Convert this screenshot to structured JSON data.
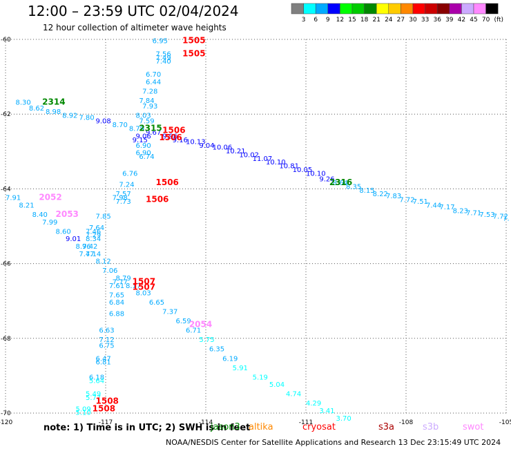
{
  "title": "12:00 – 23:59 UTC 02/04/2024",
  "subtitle": "12 hour collection of altimeter wave heights",
  "color_scale": {
    "unit": "(ft)",
    "bins": [
      {
        "label": "3",
        "color": "#808080"
      },
      {
        "label": "6",
        "color": "#00ffff"
      },
      {
        "label": "9",
        "color": "#00aaff"
      },
      {
        "label": "12",
        "color": "#0000ff"
      },
      {
        "label": "15",
        "color": "#00ff00"
      },
      {
        "label": "18",
        "color": "#00cc00"
      },
      {
        "label": "21",
        "color": "#008800"
      },
      {
        "label": "24",
        "color": "#ffff00"
      },
      {
        "label": "27",
        "color": "#ffcc00"
      },
      {
        "label": "30",
        "color": "#ff8800"
      },
      {
        "label": "33",
        "color": "#ff0000"
      },
      {
        "label": "36",
        "color": "#cc0000"
      },
      {
        "label": "39",
        "color": "#880000"
      },
      {
        "label": "42",
        "color": "#aa00aa"
      },
      {
        "label": "45",
        "color": "#ccaaff"
      },
      {
        "label": "70",
        "color": "#ff88ff"
      },
      {
        "label": "",
        "color": "#000000"
      }
    ]
  },
  "note": "note: 1) Time is in UTC; 2) SWH is in feet",
  "satellites": [
    {
      "name": "jason3",
      "color": "#008800"
    },
    {
      "name": "altika",
      "color": "#ff8800"
    },
    {
      "name": "cryosat",
      "color": "#ff0000"
    },
    {
      "name": "s3a",
      "color": "#aa0000"
    },
    {
      "name": "s3b",
      "color": "#ccaaff"
    },
    {
      "name": "swot",
      "color": "#ff88ff"
    }
  ],
  "footer": "NOAA/NESDIS Center for Satellite Applications and Research   13 Dec 23:15:49 UTC 2024",
  "chart_data": {
    "type": "scatter",
    "title": "12:00 – 23:59 UTC 02/04/2024",
    "x_ticks": [
      "-120",
      "-117",
      "-114",
      "-111",
      "-108",
      "-105"
    ],
    "y_ticks": [
      "-60",
      "-62",
      "-64",
      "-66",
      "-68",
      "-70"
    ],
    "xlim": [
      -120,
      -105
    ],
    "ylim": [
      -70,
      -60
    ],
    "grid": true,
    "passes": [
      {
        "label": "1505",
        "color": "#ff0000",
        "lon": -114.7,
        "lat": -60.1
      },
      {
        "label": "1505",
        "color": "#ff0000",
        "lon": -114.7,
        "lat": -60.45
      },
      {
        "label": "2314",
        "color": "#008800",
        "lon": -118.9,
        "lat": -61.75
      },
      {
        "label": "2315",
        "color": "#008800",
        "lon": -116.0,
        "lat": -62.45
      },
      {
        "label": "1506",
        "color": "#ff0000",
        "lon": -115.3,
        "lat": -62.5
      },
      {
        "label": "1506",
        "color": "#ff0000",
        "lon": -115.4,
        "lat": -62.7
      },
      {
        "label": "1506",
        "color": "#ff0000",
        "lon": -115.5,
        "lat": -63.9
      },
      {
        "label": "1506",
        "color": "#ff0000",
        "lon": -115.8,
        "lat": -64.35
      },
      {
        "label": "2316",
        "color": "#008800",
        "lon": -110.3,
        "lat": -63.9
      },
      {
        "label": "2052",
        "color": "#ff88ff",
        "lon": -119.0,
        "lat": -64.3
      },
      {
        "label": "2053",
        "color": "#ff88ff",
        "lon": -118.5,
        "lat": -64.75
      },
      {
        "label": "1507",
        "color": "#ff0000",
        "lon": -116.2,
        "lat": -66.55
      },
      {
        "label": "1507",
        "color": "#ff0000",
        "lon": -116.2,
        "lat": -66.7
      },
      {
        "label": "2054",
        "color": "#ff88ff",
        "lon": -114.5,
        "lat": -67.7
      },
      {
        "label": "1508",
        "color": "#ff0000",
        "lon": -117.3,
        "lat": -69.75
      },
      {
        "label": "1508",
        "color": "#ff0000",
        "lon": -117.4,
        "lat": -69.95
      }
    ],
    "points": [
      {
        "v": "6.95",
        "c": "#00aaff",
        "lon": -115.6,
        "lat": -60.1
      },
      {
        "v": "7.56",
        "c": "#00aaff",
        "lon": -115.5,
        "lat": -60.45
      },
      {
        "v": "7.49",
        "c": "#00aaff",
        "lon": -115.5,
        "lat": -60.55
      },
      {
        "v": "7.40",
        "c": "#00aaff",
        "lon": -115.5,
        "lat": -60.65
      },
      {
        "v": "6.70",
        "c": "#00aaff",
        "lon": -115.8,
        "lat": -61.0
      },
      {
        "v": "6.44",
        "c": "#00aaff",
        "lon": -115.8,
        "lat": -61.2
      },
      {
        "v": "7.28",
        "c": "#00aaff",
        "lon": -115.9,
        "lat": -61.45
      },
      {
        "v": "7.84",
        "c": "#00aaff",
        "lon": -116.0,
        "lat": -61.7
      },
      {
        "v": "7.93",
        "c": "#00aaff",
        "lon": -115.9,
        "lat": -61.85
      },
      {
        "v": "8.03",
        "c": "#00aaff",
        "lon": -116.1,
        "lat": -62.1
      },
      {
        "v": "7.59",
        "c": "#00aaff",
        "lon": -116.0,
        "lat": -62.25
      },
      {
        "v": "8.30",
        "c": "#00aaff",
        "lon": -119.7,
        "lat": -61.75
      },
      {
        "v": "8.62",
        "c": "#00aaff",
        "lon": -119.3,
        "lat": -61.9
      },
      {
        "v": "8.98",
        "c": "#00aaff",
        "lon": -118.8,
        "lat": -62.0
      },
      {
        "v": "8.92",
        "c": "#00aaff",
        "lon": -118.3,
        "lat": -62.1
      },
      {
        "v": "7.80",
        "c": "#00aaff",
        "lon": -117.8,
        "lat": -62.15
      },
      {
        "v": "9.08",
        "c": "#0000ff",
        "lon": -117.3,
        "lat": -62.25
      },
      {
        "v": "8.70",
        "c": "#00aaff",
        "lon": -116.8,
        "lat": -62.35
      },
      {
        "v": "8.79",
        "c": "#00aaff",
        "lon": -116.3,
        "lat": -62.45
      },
      {
        "v": "9.67",
        "c": "#0000ff",
        "lon": -115.8,
        "lat": -62.55
      },
      {
        "v": "9.96",
        "c": "#0000ff",
        "lon": -115.3,
        "lat": -62.65
      },
      {
        "v": "9.16",
        "c": "#0000ff",
        "lon": -115.0,
        "lat": -62.75
      },
      {
        "v": "10.13",
        "c": "#0000ff",
        "lon": -114.6,
        "lat": -62.8
      },
      {
        "v": "9.04",
        "c": "#0000ff",
        "lon": -114.2,
        "lat": -62.9
      },
      {
        "v": "10.06",
        "c": "#0000ff",
        "lon": -113.8,
        "lat": -62.95
      },
      {
        "v": "10.21",
        "c": "#0000ff",
        "lon": -113.4,
        "lat": -63.05
      },
      {
        "v": "10.02",
        "c": "#0000ff",
        "lon": -113.0,
        "lat": -63.15
      },
      {
        "v": "11.07",
        "c": "#0000ff",
        "lon": -112.6,
        "lat": -63.25
      },
      {
        "v": "10.10",
        "c": "#0000ff",
        "lon": -112.2,
        "lat": -63.35
      },
      {
        "v": "10.81",
        "c": "#0000ff",
        "lon": -111.8,
        "lat": -63.45
      },
      {
        "v": "10.05",
        "c": "#0000ff",
        "lon": -111.4,
        "lat": -63.55
      },
      {
        "v": "10.10",
        "c": "#0000ff",
        "lon": -111.0,
        "lat": -63.65
      },
      {
        "v": "9.26",
        "c": "#0000ff",
        "lon": -110.6,
        "lat": -63.8
      },
      {
        "v": "8.64",
        "c": "#00aaff",
        "lon": -110.2,
        "lat": -63.9
      },
      {
        "v": "8.35",
        "c": "#00aaff",
        "lon": -109.8,
        "lat": -64.0
      },
      {
        "v": "8.15",
        "c": "#00aaff",
        "lon": -109.4,
        "lat": -64.1
      },
      {
        "v": "8.22",
        "c": "#00aaff",
        "lon": -109.0,
        "lat": -64.2
      },
      {
        "v": "7.83",
        "c": "#00aaff",
        "lon": -108.6,
        "lat": -64.25
      },
      {
        "v": "7.72",
        "c": "#00aaff",
        "lon": -108.2,
        "lat": -64.35
      },
      {
        "v": "7.51",
        "c": "#00aaff",
        "lon": -107.8,
        "lat": -64.4
      },
      {
        "v": "7.44",
        "c": "#00aaff",
        "lon": -107.4,
        "lat": -64.5
      },
      {
        "v": "7.17",
        "c": "#00aaff",
        "lon": -107.0,
        "lat": -64.55
      },
      {
        "v": "8.23",
        "c": "#00aaff",
        "lon": -106.6,
        "lat": -64.65
      },
      {
        "v": "7.71",
        "c": "#00aaff",
        "lon": -106.2,
        "lat": -64.7
      },
      {
        "v": "7.53",
        "c": "#00aaff",
        "lon": -105.8,
        "lat": -64.75
      },
      {
        "v": "7.72",
        "c": "#00aaff",
        "lon": -105.4,
        "lat": -64.8
      },
      {
        "v": "7.",
        "c": "#00aaff",
        "lon": -105.1,
        "lat": -64.85
      },
      {
        "v": "9.06",
        "c": "#0000ff",
        "lon": -116.1,
        "lat": -62.65
      },
      {
        "v": "9.15",
        "c": "#0000ff",
        "lon": -116.2,
        "lat": -62.75
      },
      {
        "v": "6.90",
        "c": "#00aaff",
        "lon": -116.1,
        "lat": -62.9
      },
      {
        "v": "6.90",
        "c": "#00aaff",
        "lon": -116.1,
        "lat": -63.1
      },
      {
        "v": "6.74",
        "c": "#00aaff",
        "lon": -116.0,
        "lat": -63.2
      },
      {
        "v": "6.76",
        "c": "#00aaff",
        "lon": -116.5,
        "lat": -63.65
      },
      {
        "v": "7.24",
        "c": "#00aaff",
        "lon": -116.6,
        "lat": -63.95
      },
      {
        "v": "7.57",
        "c": "#00aaff",
        "lon": -116.7,
        "lat": -64.2
      },
      {
        "v": "7.98",
        "c": "#00aaff",
        "lon": -116.8,
        "lat": -64.3
      },
      {
        "v": "7.73",
        "c": "#00aaff",
        "lon": -116.7,
        "lat": -64.4
      },
      {
        "v": "7.85",
        "c": "#00aaff",
        "lon": -117.3,
        "lat": -64.8
      },
      {
        "v": "7.64",
        "c": "#00aaff",
        "lon": -117.5,
        "lat": -65.1
      },
      {
        "v": "7.46",
        "c": "#00aaff",
        "lon": -117.6,
        "lat": -65.2
      },
      {
        "v": "7.29",
        "c": "#00aaff",
        "lon": -117.6,
        "lat": -65.3
      },
      {
        "v": "8.34",
        "c": "#00aaff",
        "lon": -117.6,
        "lat": -65.4
      },
      {
        "v": "7.42",
        "c": "#00aaff",
        "lon": -117.7,
        "lat": -65.6
      },
      {
        "v": "7.47",
        "c": "#00aaff",
        "lon": -117.8,
        "lat": -65.8
      },
      {
        "v": "7.91",
        "c": "#00aaff",
        "lon": -120.0,
        "lat": -64.3
      },
      {
        "v": "8.21",
        "c": "#00aaff",
        "lon": -119.6,
        "lat": -64.5
      },
      {
        "v": "8.40",
        "c": "#00aaff",
        "lon": -119.2,
        "lat": -64.75
      },
      {
        "v": "7.99",
        "c": "#00aaff",
        "lon": -118.9,
        "lat": -64.95
      },
      {
        "v": "8.60",
        "c": "#00aaff",
        "lon": -118.5,
        "lat": -65.2
      },
      {
        "v": "9.01",
        "c": "#0000ff",
        "lon": -118.2,
        "lat": -65.4
      },
      {
        "v": "8.96",
        "c": "#00aaff",
        "lon": -117.9,
        "lat": -65.6
      },
      {
        "v": "7.14",
        "c": "#00aaff",
        "lon": -117.6,
        "lat": -65.8
      },
      {
        "v": "8.12",
        "c": "#00aaff",
        "lon": -117.3,
        "lat": -66.0
      },
      {
        "v": "7.06",
        "c": "#00aaff",
        "lon": -117.1,
        "lat": -66.25
      },
      {
        "v": "8.79",
        "c": "#00aaff",
        "lon": -116.7,
        "lat": -66.45
      },
      {
        "v": "7.77",
        "c": "#00aaff",
        "lon": -116.8,
        "lat": -66.55
      },
      {
        "v": "7.61",
        "c": "#00aaff",
        "lon": -116.9,
        "lat": -66.65
      },
      {
        "v": "8.17",
        "c": "#00aaff",
        "lon": -116.4,
        "lat": -66.65
      },
      {
        "v": "8.03",
        "c": "#00aaff",
        "lon": -116.1,
        "lat": -66.85
      },
      {
        "v": "7.65",
        "c": "#00aaff",
        "lon": -116.9,
        "lat": -66.9
      },
      {
        "v": "6.65",
        "c": "#00aaff",
        "lon": -115.7,
        "lat": -67.1
      },
      {
        "v": "6.84",
        "c": "#00aaff",
        "lon": -116.9,
        "lat": -67.1
      },
      {
        "v": "7.37",
        "c": "#00aaff",
        "lon": -115.3,
        "lat": -67.35
      },
      {
        "v": "6.88",
        "c": "#00aaff",
        "lon": -116.9,
        "lat": -67.4
      },
      {
        "v": "6.59",
        "c": "#00aaff",
        "lon": -114.9,
        "lat": -67.6
      },
      {
        "v": "6.71",
        "c": "#00aaff",
        "lon": -114.6,
        "lat": -67.85
      },
      {
        "v": "6.63",
        "c": "#00aaff",
        "lon": -117.2,
        "lat": -67.85
      },
      {
        "v": "5.75",
        "c": "#00ffff",
        "lon": -114.2,
        "lat": -68.1
      },
      {
        "v": "7.12",
        "c": "#00aaff",
        "lon": -117.2,
        "lat": -68.1
      },
      {
        "v": "6.75",
        "c": "#00aaff",
        "lon": -117.2,
        "lat": -68.25
      },
      {
        "v": "6.35",
        "c": "#00aaff",
        "lon": -113.9,
        "lat": -68.35
      },
      {
        "v": "6.19",
        "c": "#00aaff",
        "lon": -113.5,
        "lat": -68.6
      },
      {
        "v": "6.47",
        "c": "#00aaff",
        "lon": -117.3,
        "lat": -68.6
      },
      {
        "v": "6.81",
        "c": "#00aaff",
        "lon": -117.3,
        "lat": -68.7
      },
      {
        "v": "5.91",
        "c": "#00ffff",
        "lon": -113.2,
        "lat": -68.85
      },
      {
        "v": "5.19",
        "c": "#00ffff",
        "lon": -112.6,
        "lat": -69.1
      },
      {
        "v": "6.18",
        "c": "#00aaff",
        "lon": -117.5,
        "lat": -69.1
      },
      {
        "v": "5.64",
        "c": "#00ffff",
        "lon": -117.5,
        "lat": -69.2
      },
      {
        "v": "5.04",
        "c": "#00ffff",
        "lon": -112.1,
        "lat": -69.3
      },
      {
        "v": "4.74",
        "c": "#00ffff",
        "lon": -111.6,
        "lat": -69.55
      },
      {
        "v": "5.49",
        "c": "#00ffff",
        "lon": -117.6,
        "lat": -69.55
      },
      {
        "v": "5.77",
        "c": "#00ffff",
        "lon": -117.6,
        "lat": -69.65
      },
      {
        "v": "4.29",
        "c": "#00ffff",
        "lon": -111.0,
        "lat": -69.8
      },
      {
        "v": "3.41",
        "c": "#00ffff",
        "lon": -110.6,
        "lat": -70.0
      },
      {
        "v": "3.70",
        "c": "#00ffff",
        "lon": -110.1,
        "lat": -70.2
      },
      {
        "v": "5.09",
        "c": "#00ffff",
        "lon": -117.9,
        "lat": -69.95
      },
      {
        "v": "5.10",
        "c": "#00ffff",
        "lon": -117.9,
        "lat": -70.05
      }
    ]
  }
}
